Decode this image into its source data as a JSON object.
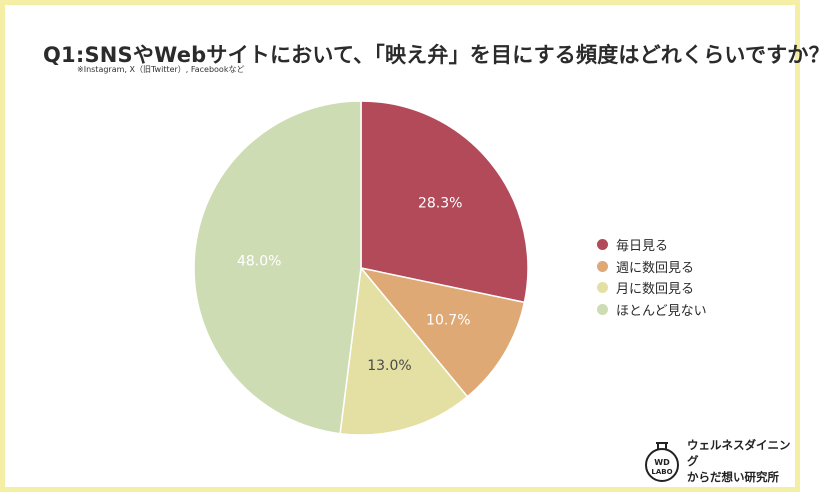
{
  "header": {
    "title": "Q1:SNSやWebサイトにおいて、「映え弁」を目にする頻度はどれくらいですか？",
    "subtitle": "※Instagram, X（旧Twitter）, Facebookなど"
  },
  "chart_data": {
    "type": "pie",
    "title": "Q1:SNSやWebサイトにおいて、「映え弁」を目にする頻度はどれくらいですか？",
    "start_angle": "12 o'clock, clockwise",
    "legend_position": "right",
    "slices": [
      {
        "label": "毎日見る",
        "value": 28.3,
        "value_label": "28.3%",
        "color": "#b34a5a"
      },
      {
        "label": "週に数回見る",
        "value": 10.7,
        "value_label": "10.7%",
        "color": "#dea975"
      },
      {
        "label": "月に数回見る",
        "value": 13.0,
        "value_label": "13.0%",
        "color": "#e4e0a4"
      },
      {
        "label": "ほとんど見ない",
        "value": 48.0,
        "value_label": "48.0%",
        "color": "#cedcb4"
      }
    ]
  },
  "brand": {
    "logo_line1": "WD",
    "logo_line2": "LABO",
    "name_line1": "ウェルネスダイニング",
    "name_line2": "からだ想い研究所"
  }
}
